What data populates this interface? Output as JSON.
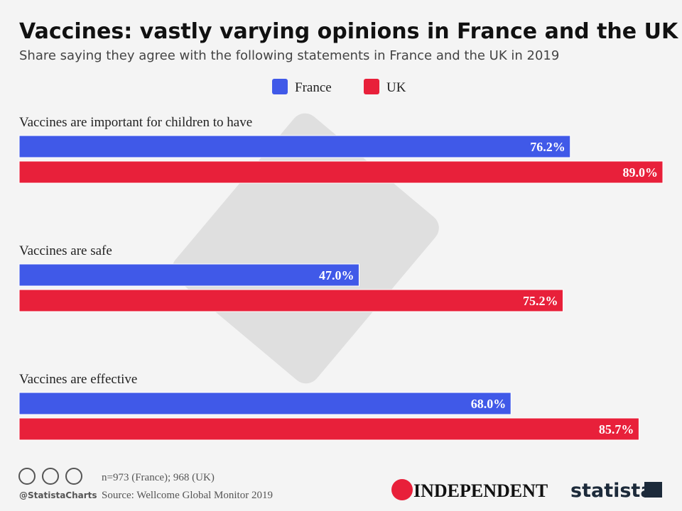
{
  "chart_data": {
    "type": "bar",
    "orientation": "horizontal",
    "title": "Vaccines: vastly varying opinions in France and the UK",
    "subtitle": "Share saying they agree with the following statements in France and the UK in 2019",
    "categories": [
      "Vaccines are important for children to have",
      "Vaccines are safe",
      "Vaccines are effective"
    ],
    "series": [
      {
        "name": "France",
        "color": "#4059e8",
        "values": [
          76.2,
          47.0,
          68.0
        ],
        "value_labels": [
          "76.2%",
          "47.0%",
          "68.0%"
        ]
      },
      {
        "name": "UK",
        "color": "#e8203a",
        "values": [
          89.0,
          75.2,
          85.7
        ],
        "value_labels": [
          "89.0%",
          "75.2%",
          "85.7%"
        ]
      }
    ],
    "legend": "top",
    "note": "n=973 (France); 968 (UK)",
    "source": "Source: Wellcome Global Monitor 2019",
    "credit": "@StatistaCharts",
    "logos": [
      "INDEPENDENT",
      "statista"
    ]
  }
}
